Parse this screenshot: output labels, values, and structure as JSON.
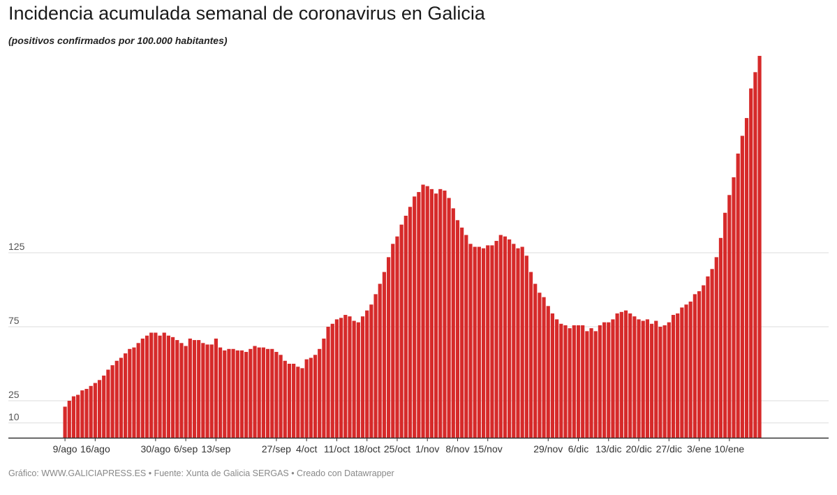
{
  "title": "Incidencia acumulada semanal de coronavirus en Galicia",
  "subtitle": "(positivos confirmados por 100.000 habitantes)",
  "footer": "Gráfico: WWW.GALICIAPRESS.ES • Fuente: Xunta de Galicia SERGAS • Creado con Datawrapper",
  "colors": {
    "bar": "#d62a2a",
    "grid": "#dddddd",
    "axis": "#333333",
    "label": "#555555"
  },
  "chart_data": {
    "type": "bar",
    "title": "Incidencia acumulada semanal de coronavirus en Galicia",
    "subtitle": "(positivos confirmados por 100.000 habitantes)",
    "xlabel": "",
    "ylabel": "",
    "ylim": [
      0,
      250
    ],
    "yticks": [
      10,
      25,
      75,
      125
    ],
    "grid": true,
    "x_start": "9/ago",
    "x_tick_labels": [
      "9/ago",
      "16/ago",
      "30/ago",
      "6/sep",
      "13/sep",
      "27/sep",
      "4/oct",
      "11/oct",
      "18/oct",
      "25/oct",
      "1/nov",
      "8/nov",
      "15/nov",
      "29/nov",
      "6/dic",
      "13/dic",
      "20/dic",
      "27/dic",
      "3/ene",
      "10/ene"
    ],
    "series": [
      {
        "values": [
          21,
          25,
          28,
          29,
          32,
          33,
          35,
          37,
          39,
          42,
          46,
          49,
          52,
          54,
          57,
          60,
          61,
          64,
          67,
          69,
          71,
          71,
          69,
          71,
          69,
          68,
          66,
          64,
          62,
          67,
          66,
          66,
          64,
          63,
          63,
          67,
          61,
          59,
          60,
          60,
          59,
          59,
          58,
          60,
          62,
          61,
          61,
          60,
          60,
          58,
          56,
          52,
          50,
          50,
          48,
          47,
          53,
          54,
          56,
          60,
          67,
          75,
          77,
          80,
          81,
          83,
          82,
          79,
          78,
          82,
          86,
          90,
          97,
          104,
          112,
          122,
          131,
          136,
          144,
          150,
          156,
          163,
          166,
          171,
          170,
          168,
          165,
          168,
          167,
          162,
          155,
          147,
          142,
          137,
          131,
          129,
          129,
          128,
          130,
          130,
          133,
          137,
          136,
          134,
          131,
          128,
          129,
          123,
          112,
          104,
          98,
          95,
          89,
          84,
          80,
          77,
          76,
          74,
          76,
          76,
          76,
          72,
          74,
          72,
          76,
          78,
          78,
          80,
          84,
          85,
          86,
          84,
          82,
          80,
          79,
          80,
          77,
          79,
          75,
          76,
          78,
          83,
          84,
          88,
          90,
          92,
          97,
          99,
          103,
          109,
          114,
          122,
          135,
          152,
          164,
          176,
          192,
          204,
          216,
          236,
          247,
          258
        ]
      }
    ]
  }
}
